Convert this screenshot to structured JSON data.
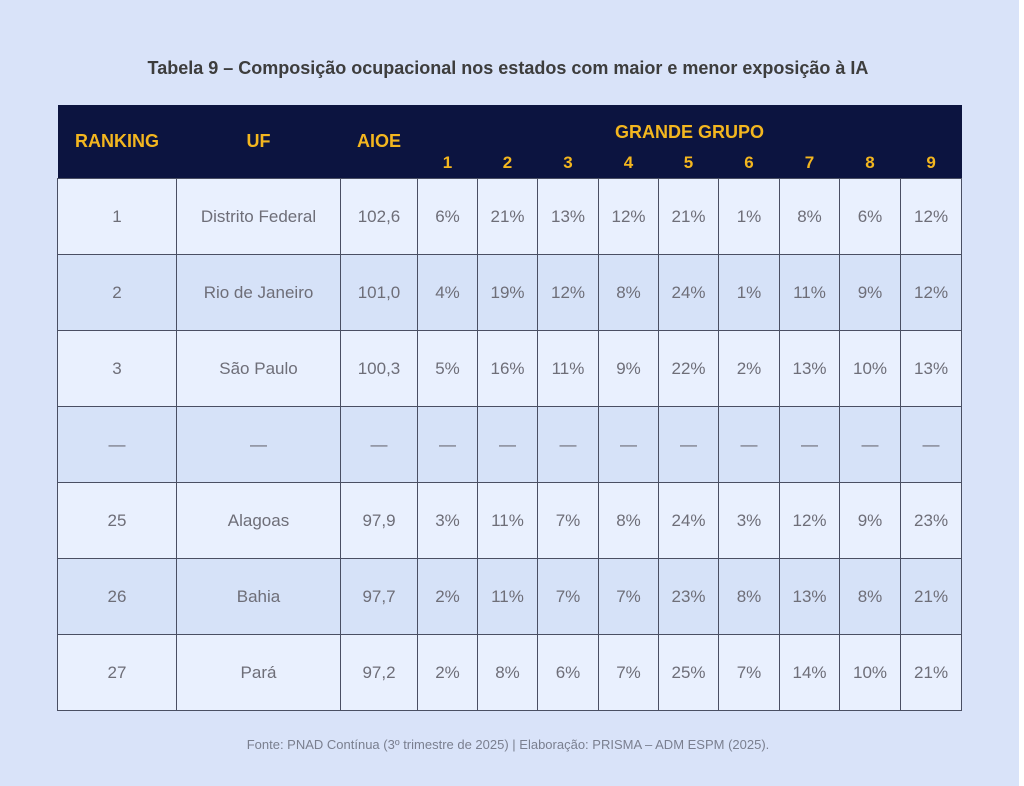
{
  "title": "Tabela 9 – Composição ocupacional nos estados com maior e menor exposição à IA",
  "headers": {
    "ranking": "RANKING",
    "uf": "UF",
    "aioe": "AIOE",
    "group": "GRANDE GRUPO",
    "group_numbers": [
      "1",
      "2",
      "3",
      "4",
      "5",
      "6",
      "7",
      "8",
      "9"
    ]
  },
  "rows": [
    {
      "ranking": "1",
      "uf": "Distrito Federal",
      "aioe": "102,6",
      "groups": [
        "6%",
        "21%",
        "13%",
        "12%",
        "21%",
        "1%",
        "8%",
        "6%",
        "12%"
      ]
    },
    {
      "ranking": "2",
      "uf": "Rio de Janeiro",
      "aioe": "101,0",
      "groups": [
        "4%",
        "19%",
        "12%",
        "8%",
        "24%",
        "1%",
        "11%",
        "9%",
        "12%"
      ]
    },
    {
      "ranking": "3",
      "uf": "São Paulo",
      "aioe": "100,3",
      "groups": [
        "5%",
        "16%",
        "11%",
        "9%",
        "22%",
        "2%",
        "13%",
        "10%",
        "13%"
      ]
    },
    {
      "ranking": "—",
      "uf": "—",
      "aioe": "—",
      "groups": [
        "—",
        "—",
        "—",
        "—",
        "—",
        "—",
        "—",
        "—",
        "—"
      ]
    },
    {
      "ranking": "25",
      "uf": "Alagoas",
      "aioe": "97,9",
      "groups": [
        "3%",
        "11%",
        "7%",
        "8%",
        "24%",
        "3%",
        "12%",
        "9%",
        "23%"
      ]
    },
    {
      "ranking": "26",
      "uf": "Bahia",
      "aioe": "97,7",
      "groups": [
        "2%",
        "11%",
        "7%",
        "7%",
        "23%",
        "8%",
        "13%",
        "8%",
        "21%"
      ]
    },
    {
      "ranking": "27",
      "uf": "Pará",
      "aioe": "97,2",
      "groups": [
        "2%",
        "8%",
        "6%",
        "7%",
        "25%",
        "7%",
        "14%",
        "10%",
        "21%"
      ]
    }
  ],
  "source": "Fonte: PNAD Contínua (3º trimestre de 2025) | Elaboração: PRISMA – ADM ESPM (2025).",
  "colors": {
    "header_bg": "#0c1440",
    "header_text": "#f3b61f",
    "page_bg": "#d9e3f9",
    "row_light": "#e9f0fe",
    "row_dark": "#d6e2f8"
  }
}
